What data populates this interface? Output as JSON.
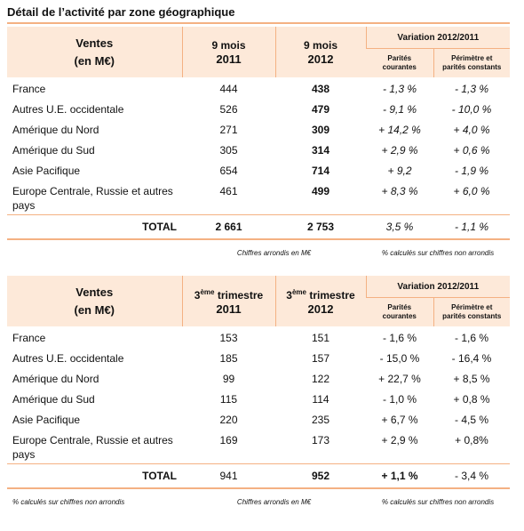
{
  "title": "Détail de l’activité par zone géographique",
  "tables": [
    {
      "header": {
        "label": [
          "Ventes",
          "(en M€)"
        ],
        "col1": [
          "9 mois",
          "2011"
        ],
        "col2": [
          "9 mois",
          "2012"
        ],
        "variation": "Variation 2012/2011",
        "sub1": [
          "Parités",
          "courantes"
        ],
        "sub2": [
          "Périmètre et",
          "parités constants"
        ]
      },
      "rows": [
        [
          "France",
          "444",
          "438",
          "- 1,3 %",
          "- 1,3 %"
        ],
        [
          "Autres U.E. occidentale",
          "526",
          "479",
          "- 9,1 %",
          "- 10,0 %"
        ],
        [
          "Amérique du Nord",
          "271",
          "309",
          "+ 14,2 %",
          "+ 4,0 %"
        ],
        [
          "Amérique du Sud",
          "305",
          "314",
          "+ 2,9 %",
          "+ 0,6 %"
        ],
        [
          "Asie Pacifique",
          "654",
          "714",
          "+ 9,2",
          "- 1,9 %"
        ],
        [
          "Europe Centrale, Russie et autres pays",
          "461",
          "499",
          "+ 8,3 %",
          "+ 6,0 %"
        ]
      ],
      "total": [
        "TOTAL",
        "2 661",
        "2 753",
        "3,5 %",
        "- 1,1 %"
      ],
      "notes": {
        "amounts": "Chiffres arrondis en M€",
        "percent": "% calculés sur chiffres non arrondis"
      }
    },
    {
      "header": {
        "label": [
          "Ventes",
          "(en M€)"
        ],
        "col1": [
          {
            "pre": "3",
            "sup": "ème",
            "post": " trimestre"
          },
          "2011"
        ],
        "col2": [
          {
            "pre": "3",
            "sup": "ème",
            "post": " trimestre"
          },
          "2012"
        ],
        "variation": "Variation 2012/2011",
        "sub1": [
          "Parités",
          "courantes"
        ],
        "sub2": [
          "Périmètre et",
          "parités constants"
        ]
      },
      "rows": [
        [
          "France",
          "153",
          "151",
          "- 1,6 %",
          "- 1,6 %"
        ],
        [
          "Autres U.E. occidentale",
          "185",
          "157",
          "- 15,0 %",
          "- 16,4 %"
        ],
        [
          "Amérique du Nord",
          "99",
          "122",
          "+ 22,7 %",
          "+ 8,5 %"
        ],
        [
          "Amérique du Sud",
          "115",
          "114",
          "- 1,0 %",
          "+ 0,8 %"
        ],
        [
          "Asie Pacifique",
          "220",
          "235",
          "+ 6,7 %",
          "- 4,5 %"
        ],
        [
          "Europe Centrale, Russie et autres pays",
          "169",
          "173",
          "+ 2,9 %",
          "+ 0,8%"
        ]
      ],
      "total": [
        "TOTAL",
        "941",
        "952",
        "+ 1,1 %",
        "- 3,4 %"
      ],
      "notes": {
        "left": "% calculés sur chiffres non arrondis",
        "amounts": "Chiffres arrondis en M€",
        "percent": "% calculés sur chiffres non arrondis"
      }
    }
  ]
}
